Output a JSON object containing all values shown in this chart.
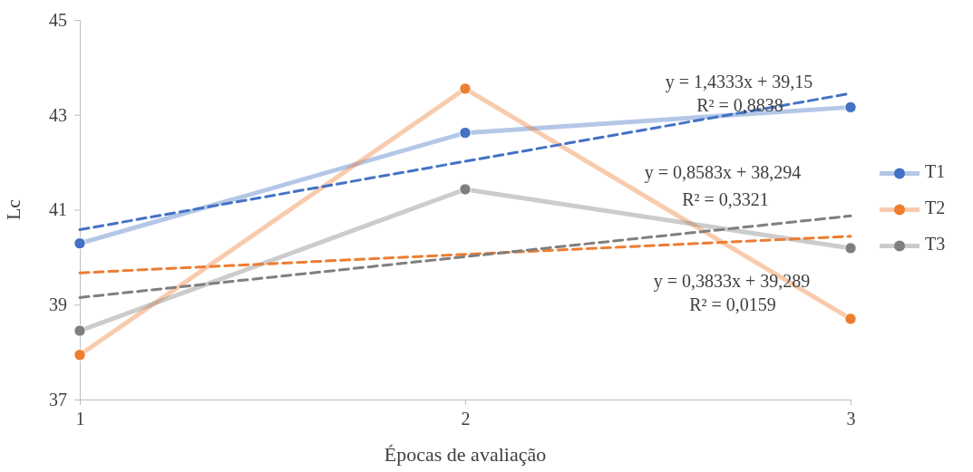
{
  "chart_data": {
    "type": "line",
    "xlabel": "Épocas de avaliação",
    "ylabel": "Lc",
    "x": [
      1,
      2,
      3
    ],
    "xlim": [
      1,
      3
    ],
    "xticks": [
      1,
      2,
      3
    ],
    "ylim": [
      37,
      45
    ],
    "yticks": [
      37,
      39,
      41,
      43,
      45
    ],
    "grid": false,
    "legend": "right",
    "marker": "circle",
    "line_style": "solid",
    "series": [
      {
        "name": "T1",
        "color": "#4472c4",
        "values": [
          40.29,
          42.62,
          43.16
        ]
      },
      {
        "name": "T2",
        "color": "#ed7d31",
        "values": [
          37.94,
          43.55,
          38.7
        ]
      },
      {
        "name": "T3",
        "color": "#7f7f7f",
        "values": [
          38.45,
          41.43,
          40.19
        ]
      },
      {
        "type": "line",
        "color": "#4472c4",
        "values": [
          40.58,
          42.02,
          43.45
        ],
        "line_style": "dashed",
        "marker": "none"
      },
      {
        "type": "line",
        "color": "#ed7d31",
        "values": [
          39.67,
          40.06,
          40.44
        ],
        "line_style": "dashed",
        "marker": "none"
      },
      {
        "type": "line",
        "color": "#7f7f7f",
        "values": [
          39.15,
          40.01,
          40.87
        ],
        "line_style": "dashed",
        "marker": "none"
      }
    ],
    "annotations": [
      "y = 1,4333x + 39,15",
      "R² = 0,8838",
      "y = 0,8583x + 38,294",
      "R² = 0,3321",
      "y = 0,3833x + 39,289",
      "R² = 0,0159"
    ]
  }
}
